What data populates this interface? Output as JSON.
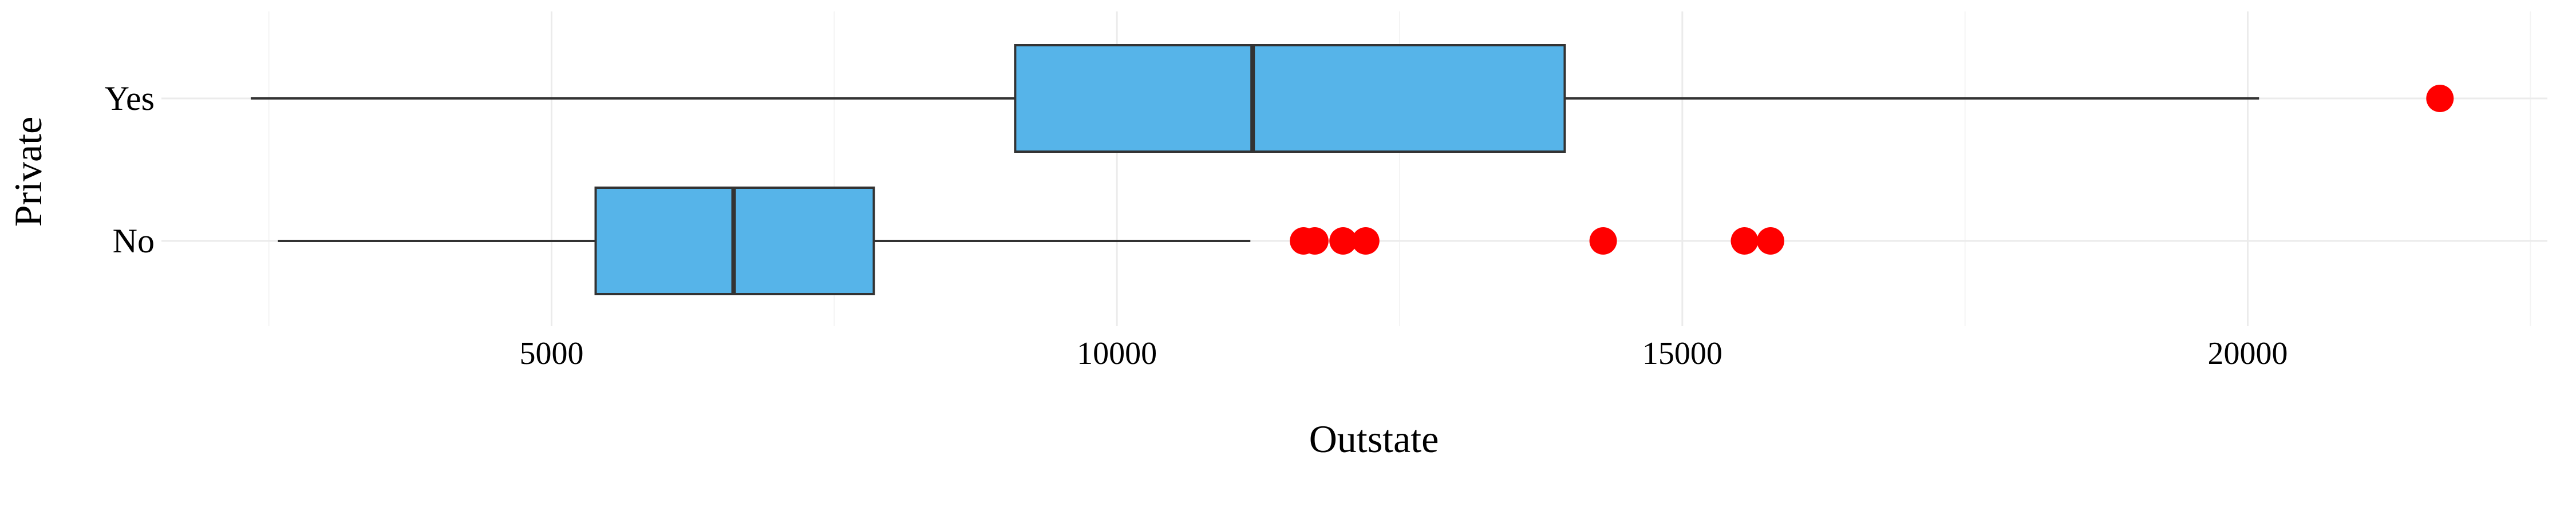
{
  "chart_data": {
    "type": "boxplot",
    "orientation": "horizontal",
    "xlabel": "Outstate",
    "ylabel": "Private",
    "xlim": [
      1550,
      22650
    ],
    "xticks": [
      5000,
      10000,
      15000,
      20000
    ],
    "xtick_labels": [
      "5000",
      "10000",
      "15000",
      "20000"
    ],
    "grid": true,
    "categories": [
      "Yes",
      "No"
    ],
    "series": [
      {
        "name": "Yes",
        "whisker_low": 2340,
        "q1": 9100,
        "median": 11200,
        "q3": 13960,
        "whisker_high": 20100,
        "outliers": [
          21700
        ]
      },
      {
        "name": "No",
        "whisker_low": 2580,
        "q1": 5390,
        "median": 6610,
        "q3": 7850,
        "whisker_high": 11180,
        "outliers": [
          11650,
          11750,
          12000,
          12200,
          14300,
          15550,
          15780
        ]
      }
    ],
    "colors": {
      "box_fill": "#56B4E9",
      "box_stroke": "#333333",
      "outlier": "#FF0000",
      "grid_major": "#EBEBEB",
      "grid_minor": "#F4F4F4"
    }
  }
}
